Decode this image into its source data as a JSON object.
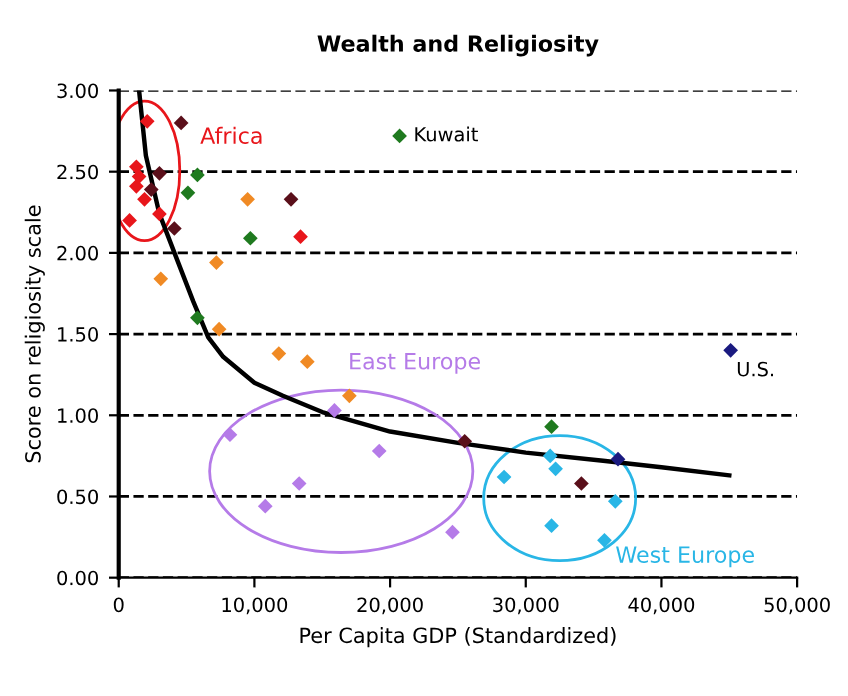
{
  "chart_data": {
    "type": "scatter",
    "title": "Wealth and Religiosity",
    "xlabel": "Per Capita GDP (Standardized)",
    "ylabel": "Score on religiosity scale",
    "xlim": [
      0,
      50000
    ],
    "ylim": [
      0,
      3
    ],
    "xticks": [
      {
        "value": 0,
        "label": "0"
      },
      {
        "value": 10000,
        "label": "10,000"
      },
      {
        "value": 20000,
        "label": "20,000"
      },
      {
        "value": 30000,
        "label": "30,000"
      },
      {
        "value": 40000,
        "label": "40,000"
      },
      {
        "value": 50000,
        "label": "50,000"
      }
    ],
    "yticks": [
      {
        "value": 0,
        "label": "0.00"
      },
      {
        "value": 0.5,
        "label": "0.50"
      },
      {
        "value": 1,
        "label": "1.00"
      },
      {
        "value": 1.5,
        "label": "1.50"
      },
      {
        "value": 2,
        "label": "2.00"
      },
      {
        "value": 2.5,
        "label": "2.50"
      },
      {
        "value": 3,
        "label": "3.00"
      }
    ],
    "grid": "y",
    "marker": "diamond",
    "legend": false,
    "series": [
      {
        "name": "Africa",
        "color": "#e8161b",
        "x": [
          800,
          1300,
          1300,
          1500,
          1900,
          2100,
          3000
        ],
        "values": [
          2.2,
          2.53,
          2.41,
          2.47,
          2.33,
          2.81,
          2.24
        ]
      },
      {
        "color": "#e8161b",
        "x": [
          13400
        ],
        "values": [
          2.1
        ]
      },
      {
        "color": "#5a0f1a",
        "x": [
          2400,
          3000,
          4100,
          4600,
          12700,
          25500,
          34100
        ],
        "values": [
          2.39,
          2.49,
          2.15,
          2.8,
          2.33,
          0.84,
          0.58
        ]
      },
      {
        "color": "#1f7a1f",
        "x": [
          5100,
          5800,
          5800,
          9700,
          20700,
          31900
        ],
        "values": [
          2.37,
          2.48,
          1.6,
          2.09,
          2.72,
          0.93
        ]
      },
      {
        "color": "#f08a24",
        "x": [
          3100,
          7200,
          7400,
          9500,
          11800,
          13900,
          17000
        ],
        "values": [
          1.84,
          1.94,
          1.53,
          2.33,
          1.38,
          1.33,
          1.12
        ]
      },
      {
        "name": "East Europe",
        "color": "#b57be8",
        "x": [
          8200,
          10800,
          13300,
          15900,
          19200,
          24600
        ],
        "values": [
          0.88,
          0.44,
          0.58,
          1.03,
          0.78,
          0.28
        ]
      },
      {
        "name": "West Europe",
        "color": "#29b6e6",
        "x": [
          28400,
          31800,
          31900,
          32200,
          35800,
          36600
        ],
        "values": [
          0.62,
          0.75,
          0.32,
          0.67,
          0.23,
          0.47
        ]
      },
      {
        "color": "#1a1a80",
        "x": [
          36800,
          45100
        ],
        "values": [
          0.73,
          1.4
        ]
      },
      {
        "type": "line",
        "color": "#000000",
        "marker": "none",
        "x": [
          1500,
          2000,
          3000,
          4200,
          5500,
          6600,
          7700,
          10000,
          12100,
          15000,
          20000,
          25000,
          30000,
          35700,
          40000,
          45000
        ],
        "values": [
          3.0,
          2.6,
          2.24,
          1.98,
          1.7,
          1.48,
          1.36,
          1.2,
          1.12,
          1.02,
          0.9,
          0.83,
          0.77,
          0.72,
          0.68,
          0.63
        ]
      }
    ],
    "annotations": [
      {
        "text": "Kuwait",
        "x": 20700,
        "y": 2.72
      },
      {
        "text": "U.S.",
        "x": 45100,
        "y": 1.4
      }
    ]
  }
}
